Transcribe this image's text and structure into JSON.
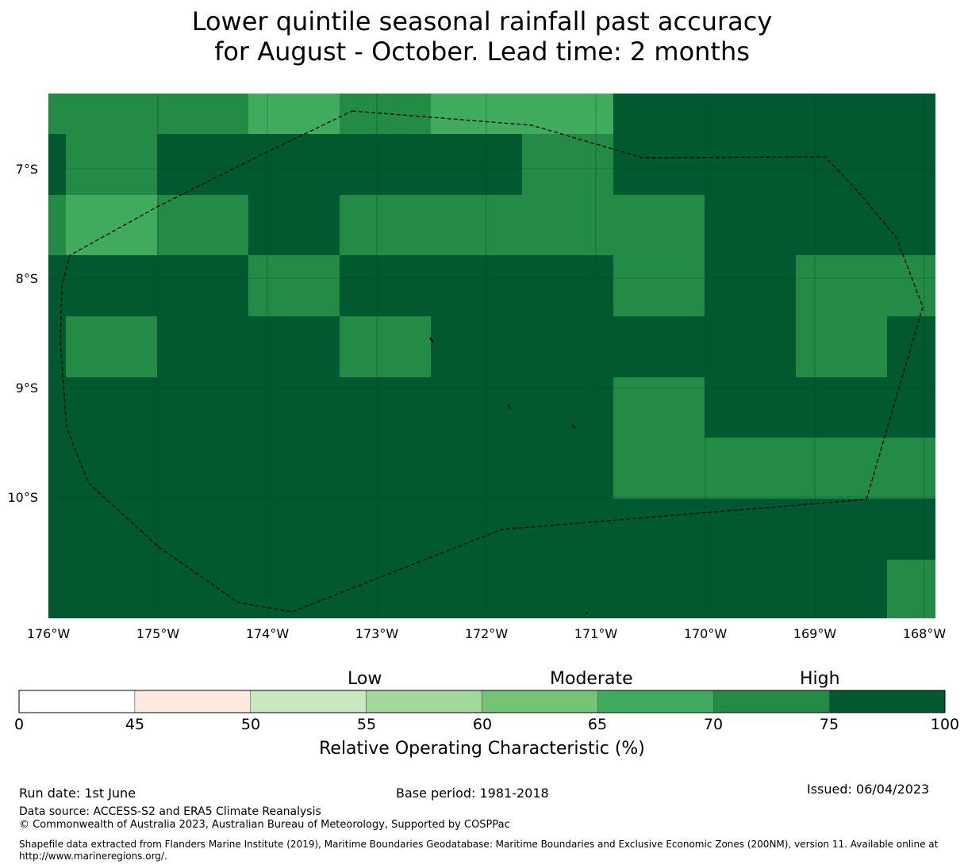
{
  "title": {
    "line1": "Lower quintile seasonal rainfall past accuracy",
    "line2": "for August - October. Lead time: 2 months"
  },
  "map": {
    "lat_labels": [
      "7°S",
      "8°S",
      "9°S",
      "10°S"
    ],
    "lon_labels": [
      "176°W",
      "175°W",
      "174°W",
      "173°W",
      "172°W",
      "171°W",
      "170°W",
      "169°W",
      "168°W"
    ],
    "colors": {
      "dark": "#00592f",
      "mid": "#238b45",
      "light": "#41ab5d"
    },
    "boundary_style": "dashed black line (EEZ)"
  },
  "colorbar": {
    "categories": [
      "Low",
      "Moderate",
      "High"
    ],
    "ticks": [
      "0",
      "45",
      "50",
      "55",
      "60",
      "65",
      "70",
      "75",
      "100"
    ],
    "bins": [
      {
        "from": 0,
        "to": 45,
        "color": "#ffffff"
      },
      {
        "from": 45,
        "to": 50,
        "color": "#fee9e1"
      },
      {
        "from": 50,
        "to": 55,
        "color": "#c7e9c0"
      },
      {
        "from": 55,
        "to": 60,
        "color": "#a1d99b"
      },
      {
        "from": 60,
        "to": 65,
        "color": "#74c476"
      },
      {
        "from": 65,
        "to": 70,
        "color": "#41ab5d"
      },
      {
        "from": 70,
        "to": 75,
        "color": "#238b45"
      },
      {
        "from": 75,
        "to": 100,
        "color": "#00592f"
      }
    ],
    "label": "Relative Operating Characteristic (%)"
  },
  "footer": {
    "run_date": "Run date: 1st June",
    "base_period": "Base period: 1981-2018",
    "issued": "Issued: 06/04/2023",
    "data_source": "Data source: ACCESS-S2 and ERA5 Climate Reanalysis",
    "copyright": "© Commonwealth of Australia 2023, Australian Bureau of Meteorology, Supported by COSPPac",
    "shapefile": "Shapefile data extracted from Flanders Marine Institute (2019), Maritime Boundaries Geodatabase: Maritime Boundaries and Exclusive Economic Zones (200NM), version 11. Available online at http://www.marineregions.org/."
  }
}
